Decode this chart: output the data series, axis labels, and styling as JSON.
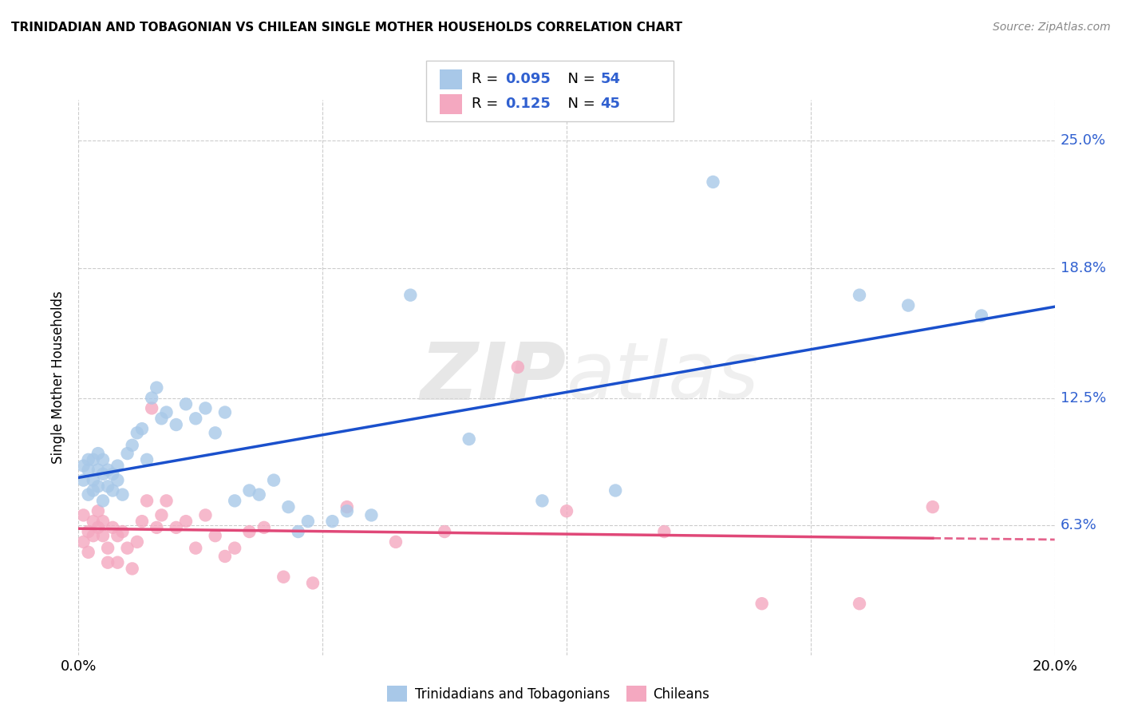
{
  "title": "TRINIDADIAN AND TOBAGONIAN VS CHILEAN SINGLE MOTHER HOUSEHOLDS CORRELATION CHART",
  "source": "Source: ZipAtlas.com",
  "ylabel": "Single Mother Households",
  "legend_label1": "Trinidadians and Tobagonians",
  "legend_label2": "Chileans",
  "R1": "0.095",
  "N1": "54",
  "R2": "0.125",
  "N2": "45",
  "color1": "#a8c8e8",
  "color2": "#f4a8c0",
  "line_color1": "#1a50cc",
  "line_color2": "#e04878",
  "text_color_blue": "#3060d0",
  "xmin": 0.0,
  "xmax": 0.2,
  "ymin": 0.0,
  "ymax": 0.27,
  "yticks": [
    0.063,
    0.125,
    0.188,
    0.25
  ],
  "ytick_labels": [
    "6.3%",
    "12.5%",
    "18.8%",
    "25.0%"
  ],
  "xticks": [
    0.0,
    0.05,
    0.1,
    0.15,
    0.2
  ],
  "xtick_labels": [
    "0.0%",
    "",
    "",
    "",
    "20.0%"
  ],
  "background_color": "#ffffff",
  "watermark_zip": "ZIP",
  "watermark_atlas": "atlas",
  "blue_points_x": [
    0.001,
    0.001,
    0.002,
    0.002,
    0.002,
    0.003,
    0.003,
    0.003,
    0.004,
    0.004,
    0.004,
    0.005,
    0.005,
    0.005,
    0.006,
    0.006,
    0.007,
    0.007,
    0.008,
    0.008,
    0.009,
    0.01,
    0.011,
    0.012,
    0.013,
    0.014,
    0.015,
    0.016,
    0.017,
    0.018,
    0.02,
    0.022,
    0.024,
    0.026,
    0.028,
    0.03,
    0.032,
    0.035,
    0.037,
    0.04,
    0.043,
    0.047,
    0.052,
    0.06,
    0.068,
    0.08,
    0.095,
    0.11,
    0.13,
    0.16,
    0.17,
    0.185,
    0.055,
    0.045
  ],
  "blue_points_y": [
    0.092,
    0.085,
    0.09,
    0.095,
    0.078,
    0.085,
    0.08,
    0.095,
    0.09,
    0.082,
    0.098,
    0.088,
    0.095,
    0.075,
    0.082,
    0.09,
    0.088,
    0.08,
    0.092,
    0.085,
    0.078,
    0.098,
    0.102,
    0.108,
    0.11,
    0.095,
    0.125,
    0.13,
    0.115,
    0.118,
    0.112,
    0.122,
    0.115,
    0.12,
    0.108,
    0.118,
    0.075,
    0.08,
    0.078,
    0.085,
    0.072,
    0.065,
    0.065,
    0.068,
    0.175,
    0.105,
    0.075,
    0.08,
    0.23,
    0.175,
    0.17,
    0.165,
    0.07,
    0.06
  ],
  "pink_points_x": [
    0.001,
    0.001,
    0.002,
    0.002,
    0.003,
    0.003,
    0.004,
    0.004,
    0.005,
    0.005,
    0.006,
    0.006,
    0.007,
    0.008,
    0.008,
    0.009,
    0.01,
    0.011,
    0.012,
    0.013,
    0.014,
    0.015,
    0.016,
    0.017,
    0.018,
    0.02,
    0.022,
    0.024,
    0.026,
    0.028,
    0.03,
    0.032,
    0.035,
    0.038,
    0.042,
    0.048,
    0.055,
    0.065,
    0.075,
    0.09,
    0.1,
    0.12,
    0.14,
    0.16,
    0.175
  ],
  "pink_points_y": [
    0.068,
    0.055,
    0.06,
    0.05,
    0.065,
    0.058,
    0.07,
    0.062,
    0.058,
    0.065,
    0.045,
    0.052,
    0.062,
    0.045,
    0.058,
    0.06,
    0.052,
    0.042,
    0.055,
    0.065,
    0.075,
    0.12,
    0.062,
    0.068,
    0.075,
    0.062,
    0.065,
    0.052,
    0.068,
    0.058,
    0.048,
    0.052,
    0.06,
    0.062,
    0.038,
    0.035,
    0.072,
    0.055,
    0.06,
    0.14,
    0.07,
    0.06,
    0.025,
    0.025,
    0.072
  ]
}
